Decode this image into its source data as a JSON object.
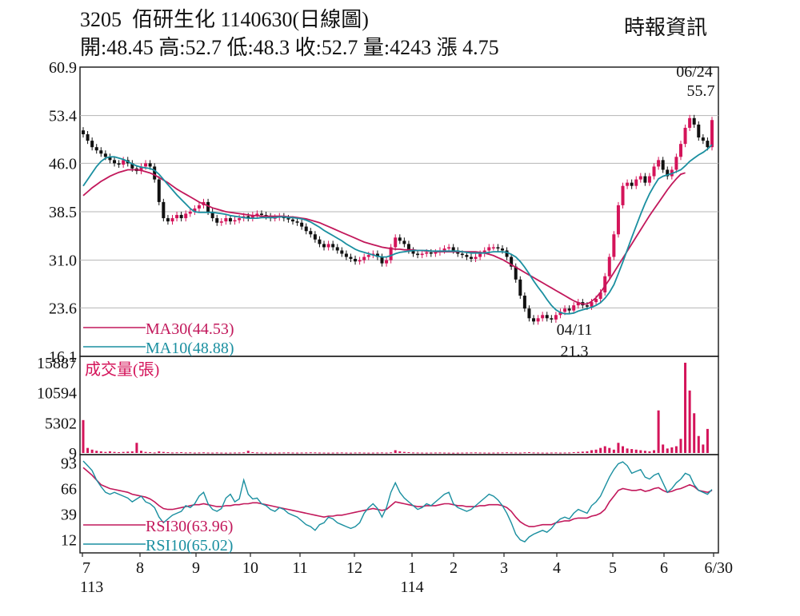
{
  "header": {
    "title": "3205  佰研生化 1140630(日線圖)",
    "stats": "開:48.45 高:52.7 低:48.3 收:52.7 量:4243 漲 4.75",
    "source": "時報資訊"
  },
  "colors": {
    "up": "#d4145a",
    "down": "#111111",
    "ma30": "#c2185b",
    "ma10": "#1a8fa0",
    "grid": "#b4b4b4",
    "volume": "#d4145a"
  },
  "chart_data": [
    {
      "type": "candlestick",
      "panel": "price",
      "yticks": [
        "60.9",
        "53.4",
        "46.0",
        "38.5",
        "31.0",
        "23.6",
        "16.1"
      ],
      "ylim": [
        16.1,
        60.9
      ],
      "legend": [
        {
          "name": "MA30(44.53)",
          "color": "#c2185b"
        },
        {
          "name": "MA10(48.88)",
          "color": "#1a8fa0"
        }
      ],
      "annotations": [
        {
          "date": "06/24",
          "value": "55.7"
        },
        {
          "date": "04/11",
          "value": "21.3"
        }
      ],
      "close": [
        50.5,
        49.5,
        48.5,
        48.0,
        47.5,
        47.0,
        46.5,
        46.0,
        45.8,
        46.5,
        46.0,
        45.2,
        44.8,
        45.5,
        46.0,
        45.5,
        43.5,
        40.0,
        37.5,
        37.0,
        37.5,
        38.0,
        37.5,
        38.2,
        38.5,
        39.0,
        39.5,
        40.0,
        38.5,
        37.5,
        36.8,
        37.0,
        37.5,
        37.0,
        37.2,
        37.5,
        37.8,
        37.5,
        38.0,
        38.2,
        38.0,
        37.8,
        37.5,
        37.6,
        37.8,
        37.5,
        37.3,
        37.0,
        36.8,
        36.2,
        35.5,
        35.0,
        34.2,
        33.5,
        33.0,
        33.5,
        33.0,
        32.5,
        32.0,
        31.5,
        31.2,
        30.8,
        31.0,
        31.5,
        31.8,
        32.0,
        31.5,
        30.5,
        31.0,
        33.0,
        34.5,
        34.0,
        33.5,
        32.5,
        32.0,
        31.8,
        32.0,
        32.2,
        32.0,
        32.2,
        32.5,
        32.8,
        33.0,
        32.5,
        32.0,
        31.8,
        31.5,
        31.2,
        31.5,
        32.0,
        32.5,
        33.0,
        33.0,
        32.8,
        32.5,
        31.5,
        30.0,
        28.0,
        25.5,
        23.5,
        22.0,
        21.5,
        22.0,
        22.5,
        22.0,
        21.8,
        22.5,
        23.0,
        23.5,
        23.2,
        24.0,
        24.5,
        24.0,
        23.8,
        24.5,
        25.0,
        26.0,
        28.5,
        31.5,
        35.0,
        39.5,
        42.5,
        43.0,
        42.5,
        43.5,
        44.0,
        43.0,
        44.0,
        45.5,
        46.5,
        45.0,
        44.0,
        45.0,
        47.0,
        49.0,
        51.5,
        53.0,
        52.0,
        50.0,
        49.5,
        48.5,
        52.7
      ],
      "ma10": [
        42.5,
        43.5,
        44.5,
        45.5,
        46.3,
        46.8,
        47.0,
        47.0,
        46.8,
        46.6,
        46.3,
        45.9,
        45.6,
        45.4,
        45.3,
        45.2,
        44.9,
        44.3,
        43.5,
        42.7,
        41.9,
        41.1,
        40.4,
        39.7,
        39.0,
        38.5,
        38.4,
        38.4,
        38.4,
        38.4,
        38.3,
        38.2,
        38.1,
        37.9,
        37.8,
        37.7,
        37.6,
        37.5,
        37.5,
        37.5,
        37.6,
        37.6,
        37.6,
        37.6,
        37.7,
        37.7,
        37.6,
        37.6,
        37.5,
        37.4,
        37.2,
        36.9,
        36.5,
        36.1,
        35.6,
        35.2,
        34.8,
        34.4,
        34.0,
        33.5,
        33.1,
        32.7,
        32.4,
        32.2,
        32.0,
        31.8,
        31.6,
        31.5,
        31.5,
        31.7,
        32.0,
        32.2,
        32.3,
        32.4,
        32.5,
        32.5,
        32.5,
        32.5,
        32.4,
        32.4,
        32.4,
        32.4,
        32.4,
        32.4,
        32.4,
        32.3,
        32.2,
        32.1,
        32.1,
        32.1,
        32.1,
        32.2,
        32.3,
        32.3,
        32.3,
        32.2,
        31.9,
        31.5,
        30.8,
        29.9,
        28.9,
        27.8,
        26.8,
        25.9,
        24.9,
        24.0,
        23.3,
        22.9,
        22.7,
        22.7,
        22.8,
        23.1,
        23.3,
        23.5,
        23.7,
        24.0,
        24.4,
        25.1,
        26.0,
        27.2,
        28.9,
        30.7,
        32.6,
        34.5,
        36.3,
        38.1,
        39.8,
        41.3,
        42.5,
        43.6,
        44.0,
        44.2,
        44.4,
        44.7,
        45.0,
        45.6,
        46.3,
        46.8,
        47.3,
        47.7,
        48.2,
        48.88
      ],
      "ma30": [
        41.0,
        41.6,
        42.2,
        42.7,
        43.2,
        43.6,
        44.0,
        44.3,
        44.6,
        44.8,
        45.0,
        45.0,
        45.0,
        44.9,
        44.7,
        44.5,
        44.2,
        43.8,
        43.4,
        43.0,
        42.5,
        42.0,
        41.6,
        41.2,
        40.8,
        40.4,
        40.0,
        39.7,
        39.4,
        39.1,
        38.9,
        38.7,
        38.5,
        38.4,
        38.3,
        38.2,
        38.1,
        38.0,
        37.9,
        37.9,
        37.8,
        37.8,
        37.8,
        37.8,
        37.8,
        37.8,
        37.7,
        37.7,
        37.6,
        37.5,
        37.4,
        37.2,
        37.0,
        36.8,
        36.5,
        36.2,
        35.9,
        35.6,
        35.3,
        35.0,
        34.7,
        34.4,
        34.1,
        33.8,
        33.6,
        33.4,
        33.2,
        33.0,
        32.9,
        32.8,
        32.7,
        32.7,
        32.6,
        32.6,
        32.6,
        32.5,
        32.5,
        32.4,
        32.4,
        32.3,
        32.3,
        32.3,
        32.3,
        32.3,
        32.3,
        32.3,
        32.3,
        32.3,
        32.3,
        32.2,
        32.1,
        31.9,
        31.7,
        31.4,
        31.1,
        30.7,
        30.3,
        29.9,
        29.5,
        29.1,
        28.7,
        28.3,
        27.9,
        27.5,
        27.1,
        26.7,
        26.3,
        25.9,
        25.5,
        25.1,
        24.7,
        24.4,
        24.2,
        24.2,
        24.6,
        25.2,
        26.0,
        27.0,
        28.0,
        29.1,
        30.2,
        31.3,
        32.4,
        33.5,
        34.6,
        35.7,
        36.8,
        37.9,
        38.9,
        39.9,
        40.9,
        41.9,
        42.8,
        43.6,
        44.3,
        44.53
      ]
    },
    {
      "type": "bar",
      "panel": "volume",
      "title": "成交量(張)",
      "yticks": [
        "15887",
        "10594",
        "5302",
        "9"
      ],
      "ylim": [
        9,
        15887
      ],
      "values": [
        5800,
        900,
        600,
        400,
        300,
        200,
        300,
        200,
        150,
        200,
        250,
        300,
        1800,
        400,
        200,
        150,
        100,
        300,
        200,
        150,
        100,
        120,
        150,
        100,
        120,
        80,
        100,
        120,
        90,
        80,
        100,
        80,
        70,
        80,
        90,
        100,
        120,
        400,
        150,
        100,
        90,
        80,
        70,
        80,
        90,
        100,
        110,
        90,
        80,
        90,
        100,
        120,
        110,
        90,
        80,
        70,
        80,
        90,
        100,
        80,
        70,
        90,
        100,
        80,
        70,
        80,
        90,
        100,
        80,
        120,
        500,
        300,
        200,
        150,
        100,
        90,
        80,
        70,
        80,
        90,
        100,
        80,
        70,
        60,
        70,
        80,
        90,
        100,
        110,
        90,
        80,
        70,
        80,
        90,
        100,
        120,
        100,
        90,
        80,
        120,
        150,
        100,
        90,
        80,
        70,
        90,
        100,
        80,
        90,
        100,
        150,
        200,
        250,
        300,
        500,
        600,
        900,
        1200,
        900,
        600,
        1800,
        1200,
        800,
        700,
        600,
        500,
        400,
        300,
        500,
        7500,
        1500,
        800,
        1000,
        1200,
        2500,
        15887,
        11000,
        7000,
        3000,
        1500,
        4243
      ]
    },
    {
      "type": "line",
      "panel": "rsi",
      "yticks": [
        "93",
        "66",
        "39",
        "12"
      ],
      "ylim": [
        0,
        100
      ],
      "legend": [
        {
          "name": "RSI30(63.96)",
          "color": "#c2185b"
        },
        {
          "name": "RSI10(65.02)",
          "color": "#1a8fa0"
        }
      ],
      "rsi30": [
        88,
        84,
        80,
        75,
        70,
        68,
        66,
        65,
        64,
        63,
        62,
        60,
        59,
        58,
        57,
        55,
        52,
        48,
        45,
        44,
        44,
        45,
        46,
        47,
        48,
        49,
        49,
        50,
        49,
        48,
        47,
        47,
        48,
        48,
        49,
        49,
        50,
        50,
        51,
        51,
        50,
        49,
        48,
        47,
        46,
        45,
        44,
        43,
        42,
        41,
        40,
        39,
        38,
        37,
        36,
        37,
        37,
        38,
        38,
        39,
        40,
        41,
        42,
        43,
        44,
        45,
        44,
        43,
        44,
        48,
        52,
        51,
        50,
        49,
        48,
        47,
        47,
        48,
        48,
        48,
        49,
        50,
        50,
        49,
        48,
        48,
        47,
        47,
        47,
        48,
        48,
        49,
        49,
        49,
        48,
        46,
        42,
        36,
        31,
        28,
        26,
        26,
        27,
        28,
        28,
        28,
        30,
        31,
        32,
        32,
        34,
        35,
        35,
        35,
        37,
        38,
        40,
        44,
        52,
        58,
        64,
        66,
        65,
        64,
        64,
        65,
        63,
        64,
        66,
        67,
        64,
        62,
        63,
        65,
        66,
        68,
        70,
        68,
        64,
        63,
        62,
        63.96
      ],
      "rsi10": [
        95,
        90,
        85,
        75,
        68,
        62,
        60,
        62,
        60,
        58,
        56,
        52,
        55,
        58,
        52,
        50,
        46,
        36,
        30,
        34,
        38,
        40,
        42,
        48,
        46,
        50,
        58,
        62,
        50,
        44,
        42,
        45,
        56,
        60,
        52,
        55,
        75,
        60,
        55,
        56,
        50,
        48,
        44,
        42,
        46,
        44,
        40,
        38,
        36,
        32,
        28,
        26,
        22,
        28,
        30,
        36,
        34,
        30,
        28,
        26,
        24,
        26,
        30,
        40,
        46,
        50,
        45,
        36,
        46,
        62,
        72,
        62,
        56,
        52,
        48,
        44,
        46,
        50,
        48,
        52,
        56,
        60,
        62,
        50,
        46,
        44,
        42,
        44,
        48,
        52,
        56,
        60,
        58,
        54,
        48,
        40,
        30,
        18,
        12,
        10,
        15,
        18,
        20,
        22,
        20,
        24,
        30,
        34,
        36,
        34,
        40,
        44,
        42,
        40,
        48,
        52,
        58,
        68,
        78,
        86,
        92,
        94,
        90,
        82,
        84,
        86,
        78,
        76,
        80,
        82,
        72,
        62,
        66,
        72,
        76,
        82,
        80,
        70,
        64,
        62,
        60,
        65.02
      ]
    }
  ],
  "xaxis": {
    "months": [
      {
        "label": "7",
        "sub": "113"
      },
      {
        "label": "8"
      },
      {
        "label": "9"
      },
      {
        "label": "10"
      },
      {
        "label": "11"
      },
      {
        "label": "12"
      },
      {
        "label": "1",
        "sub": "114"
      },
      {
        "label": "2"
      },
      {
        "label": "3"
      },
      {
        "label": "4"
      },
      {
        "label": "5"
      },
      {
        "label": "6"
      },
      {
        "label": "6/30"
      }
    ]
  }
}
